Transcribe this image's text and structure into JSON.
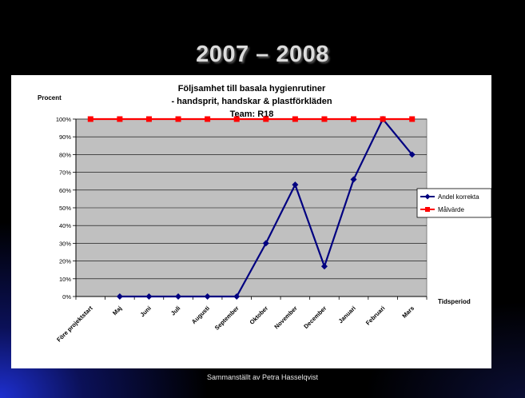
{
  "slide": {
    "title": "2007 – 2008",
    "footer": "Sammanställt av Petra Hasselqvist"
  },
  "chart_data": {
    "type": "line",
    "title_lines": [
      "Följsamhet till basala hygienrutiner",
      "- handsprit, handskar & plastförkläden",
      "Team: R18"
    ],
    "ylabel": "Procent",
    "xlabel": "Tidsperiod",
    "categories": [
      "Före projektstart",
      "Maj",
      "Juni",
      "Juli",
      "Augusti",
      "September",
      "Oktober",
      "November",
      "December",
      "Januari",
      "Februari",
      "Mars"
    ],
    "ylim": [
      0,
      100
    ],
    "yticks": [
      "0%",
      "10%",
      "20%",
      "30%",
      "40%",
      "50%",
      "60%",
      "70%",
      "80%",
      "90%",
      "100%"
    ],
    "grid": true,
    "legend_position": "right",
    "series": [
      {
        "name": "Andel korrekta",
        "color": "#000080",
        "marker": "diamond",
        "values": [
          null,
          0,
          0,
          0,
          0,
          0,
          30,
          63,
          17,
          66,
          100,
          80
        ]
      },
      {
        "name": "Målvärde",
        "color": "#ff0000",
        "marker": "square",
        "values": [
          100,
          100,
          100,
          100,
          100,
          100,
          100,
          100,
          100,
          100,
          100,
          100
        ]
      }
    ],
    "plot_background": "#c0c0c0"
  }
}
